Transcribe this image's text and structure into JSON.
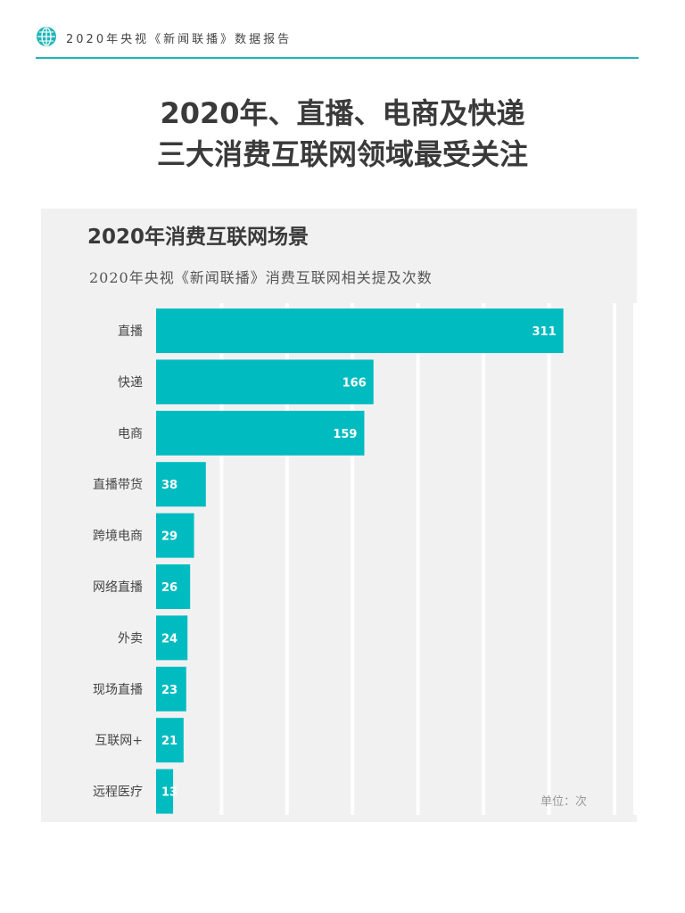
{
  "header": {
    "text": "2020年央视《新闻联播》数据报告",
    "icon": "globe-icon",
    "accent_color": "#1fb5b8"
  },
  "headline": {
    "line1": "2020年、直播、电商及快递",
    "line2": "三大消费互联网领域最受关注"
  },
  "chart_data": {
    "type": "bar",
    "orientation": "horizontal",
    "title": "2020年消费互联网场景",
    "subtitle": "2020年央视《新闻联播》消费互联网相关提及次数",
    "unit_note": "单位：次",
    "categories": [
      "直播",
      "快递",
      "电商",
      "直播带货",
      "跨境电商",
      "网络直播",
      "外卖",
      "现场直播",
      "互联网+",
      "远程医疗"
    ],
    "values": [
      311,
      166,
      159,
      38,
      29,
      26,
      24,
      23,
      21,
      13
    ],
    "xlim": [
      0,
      350
    ],
    "grid": true,
    "bar_color": "#00bcc1",
    "background_color": "#f1f1f1"
  }
}
